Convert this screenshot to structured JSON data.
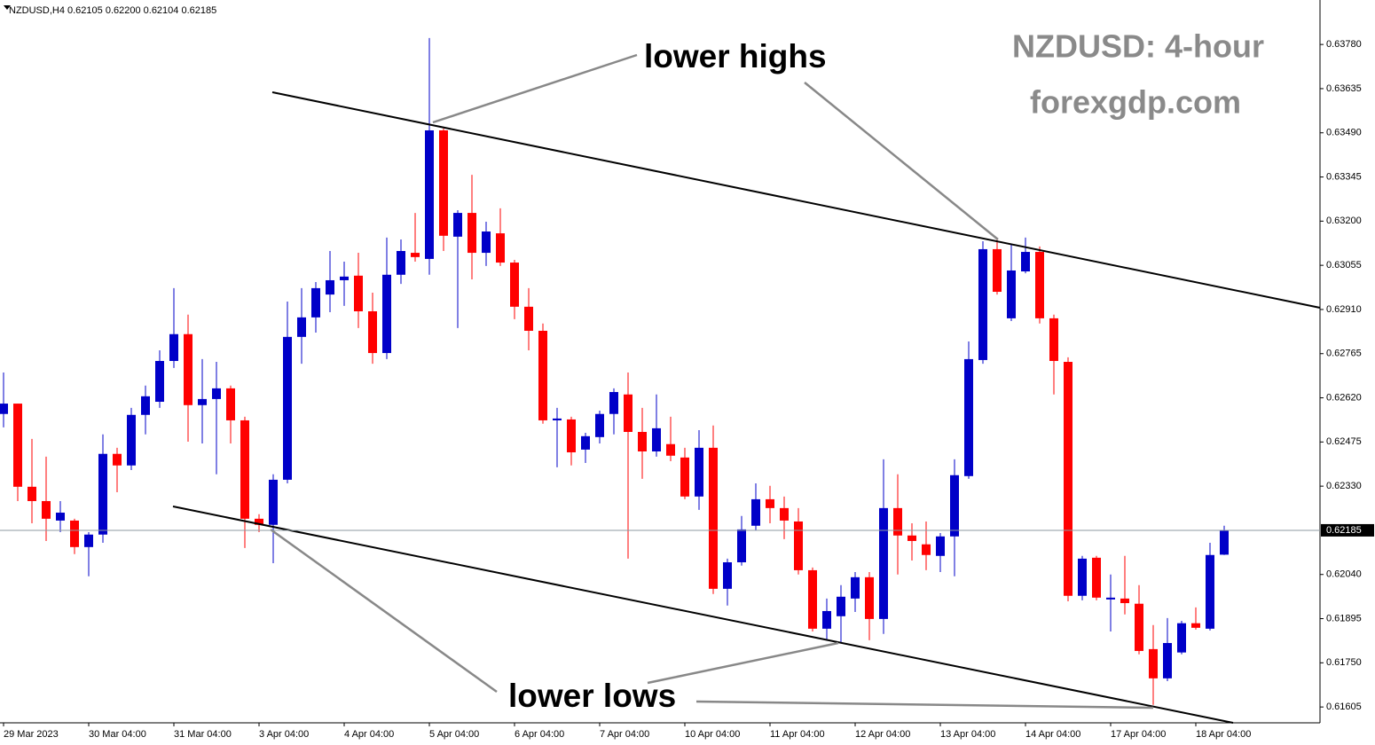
{
  "chart_data": {
    "type": "candlestick",
    "header": "NZDUSD,H4  0.62105 0.62200 0.62104 0.62185",
    "title": "NZDUSD: 4-hour",
    "subtitle": "forexgdp.com",
    "annotations": [
      "lower highs",
      "lower lows"
    ],
    "bull_color": "#0000c8",
    "bear_color": "#ff0000",
    "ylim": [
      0.61553,
      0.63926
    ],
    "yticks": [
      {
        "value": 0.6378,
        "label": "0.63780"
      },
      0.63635,
      {
        "value": 0.6349,
        "label": "0.63490"
      },
      0.63345,
      {
        "value": 0.632,
        "label": "0.63200"
      },
      0.63055,
      {
        "value": 0.6291,
        "label": "0.62910"
      },
      0.62765,
      {
        "value": 0.6262,
        "label": "0.62620"
      },
      0.62475,
      {
        "value": 0.6233,
        "label": "0.62330"
      },
      {
        "value": 0.6204,
        "label": "0.62040"
      },
      0.61895,
      {
        "value": 0.6175,
        "label": "0.61750"
      },
      0.61605
    ],
    "price_line": 0.62185,
    "xticks": [
      {
        "value": 0,
        "label": "29 Mar 2023"
      },
      {
        "value": 6,
        "label": "30 Mar 04:00"
      },
      {
        "value": 12,
        "label": "31 Mar 04:00"
      },
      {
        "value": 18,
        "label": "3 Apr 04:00"
      },
      {
        "value": 24,
        "label": "4 Apr 04:00"
      },
      {
        "value": 30,
        "label": "5 Apr 04:00"
      },
      {
        "value": 36,
        "label": "6 Apr 04:00"
      },
      {
        "value": 42,
        "label": "7 Apr 04:00"
      },
      {
        "value": 48,
        "label": "10 Apr 04:00"
      },
      {
        "value": 54,
        "label": "11 Apr 04:00"
      },
      {
        "value": 60,
        "label": "12 Apr 04:00"
      },
      {
        "value": 66,
        "label": "13 Apr 04:00"
      },
      {
        "value": 72,
        "label": "14 Apr 04:00"
      },
      {
        "value": 78,
        "label": "17 Apr 04:00"
      },
      {
        "value": 84,
        "label": "18 Apr 04:00"
      }
    ],
    "candles": [
      {
        "o": 0.62567,
        "h": 0.62703,
        "l": 0.62523,
        "c": 0.62601
      },
      {
        "o": 0.62601,
        "h": 0.62601,
        "l": 0.62281,
        "c": 0.62328
      },
      {
        "o": 0.62328,
        "h": 0.62485,
        "l": 0.62208,
        "c": 0.62281
      },
      {
        "o": 0.62281,
        "h": 0.62427,
        "l": 0.6215,
        "c": 0.62223
      },
      {
        "o": 0.62217,
        "h": 0.62281,
        "l": 0.62179,
        "c": 0.62243
      },
      {
        "o": 0.62217,
        "h": 0.62223,
        "l": 0.62107,
        "c": 0.6213
      },
      {
        "o": 0.6213,
        "h": 0.62179,
        "l": 0.62034,
        "c": 0.62171
      },
      {
        "o": 0.62171,
        "h": 0.625,
        "l": 0.62144,
        "c": 0.62436
      },
      {
        "o": 0.62436,
        "h": 0.62456,
        "l": 0.6231,
        "c": 0.62398
      },
      {
        "o": 0.62398,
        "h": 0.62587,
        "l": 0.62383,
        "c": 0.62564
      },
      {
        "o": 0.62564,
        "h": 0.6266,
        "l": 0.625,
        "c": 0.62625
      },
      {
        "o": 0.62607,
        "h": 0.62776,
        "l": 0.62587,
        "c": 0.62741
      },
      {
        "o": 0.62741,
        "h": 0.6298,
        "l": 0.62718,
        "c": 0.62829
      },
      {
        "o": 0.62829,
        "h": 0.62893,
        "l": 0.62476,
        "c": 0.62596
      },
      {
        "o": 0.62596,
        "h": 0.62747,
        "l": 0.6247,
        "c": 0.62616
      },
      {
        "o": 0.62616,
        "h": 0.62738,
        "l": 0.62369,
        "c": 0.62651
      },
      {
        "o": 0.62651,
        "h": 0.6266,
        "l": 0.6247,
        "c": 0.62546
      },
      {
        "o": 0.62546,
        "h": 0.62558,
        "l": 0.62127,
        "c": 0.62223
      },
      {
        "o": 0.62223,
        "h": 0.62238,
        "l": 0.62179,
        "c": 0.62203
      },
      {
        "o": 0.62203,
        "h": 0.62369,
        "l": 0.62077,
        "c": 0.62351
      },
      {
        "o": 0.62351,
        "h": 0.62936,
        "l": 0.62339,
        "c": 0.6282
      },
      {
        "o": 0.6282,
        "h": 0.6298,
        "l": 0.62732,
        "c": 0.62884
      },
      {
        "o": 0.62884,
        "h": 0.63,
        "l": 0.62834,
        "c": 0.6298
      },
      {
        "o": 0.62959,
        "h": 0.63102,
        "l": 0.62901,
        "c": 0.63006
      },
      {
        "o": 0.63006,
        "h": 0.63067,
        "l": 0.62922,
        "c": 0.63018
      },
      {
        "o": 0.63021,
        "h": 0.63096,
        "l": 0.62849,
        "c": 0.62904
      },
      {
        "o": 0.62904,
        "h": 0.62965,
        "l": 0.62732,
        "c": 0.62767
      },
      {
        "o": 0.62767,
        "h": 0.63146,
        "l": 0.62747,
        "c": 0.63024
      },
      {
        "o": 0.63024,
        "h": 0.6314,
        "l": 0.62994,
        "c": 0.63102
      },
      {
        "o": 0.63096,
        "h": 0.63227,
        "l": 0.63067,
        "c": 0.63082
      },
      {
        "o": 0.63076,
        "h": 0.63801,
        "l": 0.63024,
        "c": 0.63498
      },
      {
        "o": 0.63498,
        "h": 0.63504,
        "l": 0.63102,
        "c": 0.63152
      },
      {
        "o": 0.63149,
        "h": 0.63236,
        "l": 0.62849,
        "c": 0.63227
      },
      {
        "o": 0.63227,
        "h": 0.63352,
        "l": 0.63009,
        "c": 0.63096
      },
      {
        "o": 0.63096,
        "h": 0.63198,
        "l": 0.63053,
        "c": 0.63166
      },
      {
        "o": 0.6316,
        "h": 0.63242,
        "l": 0.63053,
        "c": 0.63064
      },
      {
        "o": 0.63064,
        "h": 0.63073,
        "l": 0.62878,
        "c": 0.62919
      },
      {
        "o": 0.62919,
        "h": 0.6298,
        "l": 0.62776,
        "c": 0.6284
      },
      {
        "o": 0.6284,
        "h": 0.62864,
        "l": 0.62535,
        "c": 0.62546
      },
      {
        "o": 0.62546,
        "h": 0.62587,
        "l": 0.62392,
        "c": 0.62552
      },
      {
        "o": 0.62549,
        "h": 0.62558,
        "l": 0.62398,
        "c": 0.62441
      },
      {
        "o": 0.6245,
        "h": 0.62505,
        "l": 0.62406,
        "c": 0.62494
      },
      {
        "o": 0.62491,
        "h": 0.62578,
        "l": 0.6247,
        "c": 0.62567
      },
      {
        "o": 0.62567,
        "h": 0.62651,
        "l": 0.625,
        "c": 0.62639
      },
      {
        "o": 0.62631,
        "h": 0.62703,
        "l": 0.62092,
        "c": 0.62508
      },
      {
        "o": 0.62508,
        "h": 0.62587,
        "l": 0.62354,
        "c": 0.62444
      },
      {
        "o": 0.62444,
        "h": 0.62631,
        "l": 0.62427,
        "c": 0.6252
      },
      {
        "o": 0.62468,
        "h": 0.62558,
        "l": 0.62412,
        "c": 0.6243
      },
      {
        "o": 0.62424,
        "h": 0.62456,
        "l": 0.62287,
        "c": 0.62296
      },
      {
        "o": 0.62296,
        "h": 0.62514,
        "l": 0.62252,
        "c": 0.62456
      },
      {
        "o": 0.62456,
        "h": 0.62529,
        "l": 0.61976,
        "c": 0.61993
      },
      {
        "o": 0.61993,
        "h": 0.62092,
        "l": 0.61938,
        "c": 0.6208
      },
      {
        "o": 0.6208,
        "h": 0.62232,
        "l": 0.62069,
        "c": 0.62188
      },
      {
        "o": 0.622,
        "h": 0.62339,
        "l": 0.62185,
        "c": 0.62287
      },
      {
        "o": 0.62287,
        "h": 0.62331,
        "l": 0.62208,
        "c": 0.62258
      },
      {
        "o": 0.62258,
        "h": 0.62296,
        "l": 0.62156,
        "c": 0.62217
      },
      {
        "o": 0.62214,
        "h": 0.62258,
        "l": 0.6204,
        "c": 0.62054
      },
      {
        "o": 0.62054,
        "h": 0.62063,
        "l": 0.61853,
        "c": 0.61862
      },
      {
        "o": 0.61862,
        "h": 0.61961,
        "l": 0.61824,
        "c": 0.6192
      },
      {
        "o": 0.61903,
        "h": 0.62005,
        "l": 0.61815,
        "c": 0.61967
      },
      {
        "o": 0.61961,
        "h": 0.62048,
        "l": 0.61917,
        "c": 0.62031
      },
      {
        "o": 0.62031,
        "h": 0.62048,
        "l": 0.61824,
        "c": 0.61894
      },
      {
        "o": 0.61894,
        "h": 0.62418,
        "l": 0.61845,
        "c": 0.62258
      },
      {
        "o": 0.62258,
        "h": 0.62369,
        "l": 0.6204,
        "c": 0.62168
      },
      {
        "o": 0.62168,
        "h": 0.62208,
        "l": 0.62086,
        "c": 0.6215
      },
      {
        "o": 0.62139,
        "h": 0.62214,
        "l": 0.62054,
        "c": 0.62104
      },
      {
        "o": 0.62101,
        "h": 0.62176,
        "l": 0.62048,
        "c": 0.62165
      },
      {
        "o": 0.62165,
        "h": 0.62418,
        "l": 0.62034,
        "c": 0.62366
      },
      {
        "o": 0.62363,
        "h": 0.62805,
        "l": 0.62354,
        "c": 0.62747
      },
      {
        "o": 0.62744,
        "h": 0.63134,
        "l": 0.62732,
        "c": 0.63108
      },
      {
        "o": 0.63108,
        "h": 0.63146,
        "l": 0.62959,
        "c": 0.62968
      },
      {
        "o": 0.62881,
        "h": 0.63126,
        "l": 0.62872,
        "c": 0.63038
      },
      {
        "o": 0.63035,
        "h": 0.63146,
        "l": 0.63029,
        "c": 0.63099
      },
      {
        "o": 0.63099,
        "h": 0.63117,
        "l": 0.62864,
        "c": 0.62881
      },
      {
        "o": 0.62881,
        "h": 0.62893,
        "l": 0.62631,
        "c": 0.62741
      },
      {
        "o": 0.62738,
        "h": 0.62753,
        "l": 0.61952,
        "c": 0.6197
      },
      {
        "o": 0.6197,
        "h": 0.62101,
        "l": 0.61955,
        "c": 0.62092
      },
      {
        "o": 0.62095,
        "h": 0.62101,
        "l": 0.61955,
        "c": 0.61964
      },
      {
        "o": 0.61958,
        "h": 0.6204,
        "l": 0.61853,
        "c": 0.61964
      },
      {
        "o": 0.61961,
        "h": 0.62101,
        "l": 0.61909,
        "c": 0.61946
      },
      {
        "o": 0.61944,
        "h": 0.62005,
        "l": 0.61778,
        "c": 0.61789
      },
      {
        "o": 0.61795,
        "h": 0.61874,
        "l": 0.61612,
        "c": 0.61699
      },
      {
        "o": 0.61699,
        "h": 0.61897,
        "l": 0.6169,
        "c": 0.61815
      },
      {
        "o": 0.61784,
        "h": 0.61888,
        "l": 0.61778,
        "c": 0.6188
      },
      {
        "o": 0.6188,
        "h": 0.61932,
        "l": 0.61859,
        "c": 0.61865
      },
      {
        "o": 0.61862,
        "h": 0.62144,
        "l": 0.61856,
        "c": 0.62104
      },
      {
        "o": 0.62105,
        "h": 0.622,
        "l": 0.62104,
        "c": 0.62185
      }
    ]
  }
}
